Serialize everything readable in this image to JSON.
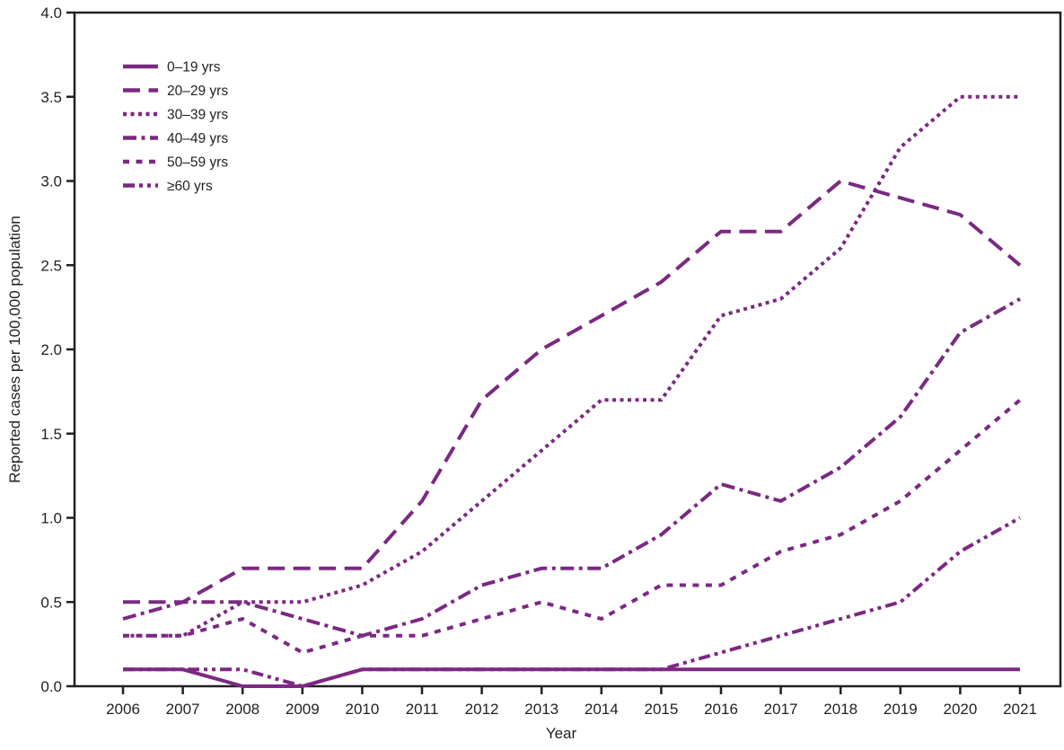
{
  "figure": {
    "background": "#ffffff",
    "axis_color": "#231f20",
    "line_color": "#7b2982"
  },
  "chart_data": {
    "type": "line",
    "title": "",
    "xlabel": "Year",
    "ylabel": "Reported cases per 100,000 population",
    "x": [
      2006,
      2007,
      2008,
      2009,
      2010,
      2011,
      2012,
      2013,
      2014,
      2015,
      2016,
      2017,
      2018,
      2019,
      2020,
      2021
    ],
    "ylim": [
      0.0,
      4.0
    ],
    "ytick_step": 0.5,
    "yticks": [
      "0.0",
      "0.5",
      "1.0",
      "1.5",
      "2.0",
      "2.5",
      "3.0",
      "3.5",
      "4.0"
    ],
    "grid": "off",
    "legend_position": "top-left-inside",
    "line_color": "#7b2982",
    "series": [
      {
        "name": "0–19 yrs",
        "dash": "solid",
        "values": [
          0.1,
          0.1,
          0.0,
          0.0,
          0.1,
          0.1,
          0.1,
          0.1,
          0.1,
          0.1,
          0.1,
          0.1,
          0.1,
          0.1,
          0.1,
          0.1
        ]
      },
      {
        "name": "20–29 yrs",
        "dash": "long-dash",
        "values": [
          0.5,
          0.5,
          0.7,
          0.7,
          0.7,
          1.1,
          1.7,
          2.0,
          2.2,
          2.4,
          2.7,
          2.7,
          3.0,
          2.9,
          2.8,
          2.5
        ]
      },
      {
        "name": "30–39 yrs",
        "dash": "dot",
        "values": [
          0.3,
          0.3,
          0.5,
          0.5,
          0.6,
          0.8,
          1.1,
          1.4,
          1.7,
          1.7,
          2.2,
          2.3,
          2.6,
          3.2,
          3.5,
          3.5
        ]
      },
      {
        "name": "40–49 yrs",
        "dash": "dash-dot",
        "values": [
          0.4,
          0.5,
          0.5,
          0.4,
          0.3,
          0.4,
          0.6,
          0.7,
          0.7,
          0.9,
          1.2,
          1.1,
          1.3,
          1.6,
          2.1,
          2.3
        ]
      },
      {
        "name": "50–59 yrs",
        "dash": "square-dash",
        "values": [
          0.3,
          0.3,
          0.4,
          0.2,
          0.3,
          0.3,
          0.4,
          0.5,
          0.4,
          0.6,
          0.6,
          0.8,
          0.9,
          1.1,
          1.4,
          1.7
        ]
      },
      {
        "name": "≥60 yrs",
        "dash": "dash-dot-dot",
        "values": [
          0.1,
          0.1,
          0.1,
          0.0,
          0.1,
          0.1,
          0.1,
          0.1,
          0.1,
          0.1,
          0.2,
          0.3,
          0.4,
          0.5,
          0.8,
          1.0
        ]
      }
    ]
  }
}
